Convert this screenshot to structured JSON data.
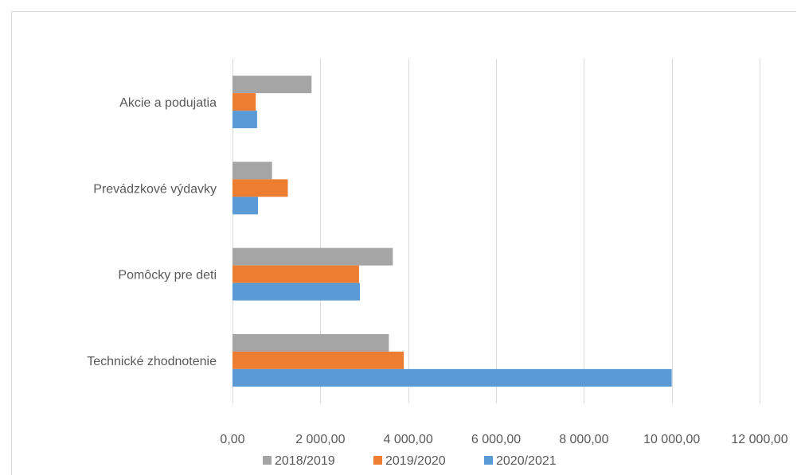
{
  "chart_data": {
    "type": "bar",
    "orientation": "horizontal",
    "categories": [
      "Akcie a podujatia",
      "Prevádzkové výdavky",
      "Pomôcky pre deti",
      "Technické zhodnotenie"
    ],
    "series": [
      {
        "name": "2018/2019",
        "color": "#a5a5a5",
        "values": [
          1800,
          900,
          3650,
          3560
        ]
      },
      {
        "name": "2019/2020",
        "color": "#ed7d31",
        "values": [
          530,
          1260,
          2880,
          3900
        ]
      },
      {
        "name": "2020/2021",
        "color": "#5b9bd5",
        "values": [
          560,
          580,
          2900,
          10000
        ]
      }
    ],
    "xlim": [
      0,
      12000
    ],
    "xticks": [
      0,
      2000,
      4000,
      6000,
      8000,
      10000,
      12000
    ],
    "xtick_labels": [
      "0,00",
      "2 000,00",
      "4 000,00",
      "6 000,00",
      "8 000,00",
      "10 000,00",
      "12 000,00"
    ],
    "title": "",
    "xlabel": "",
    "ylabel": "",
    "grid": true,
    "legend_position": "bottom"
  }
}
